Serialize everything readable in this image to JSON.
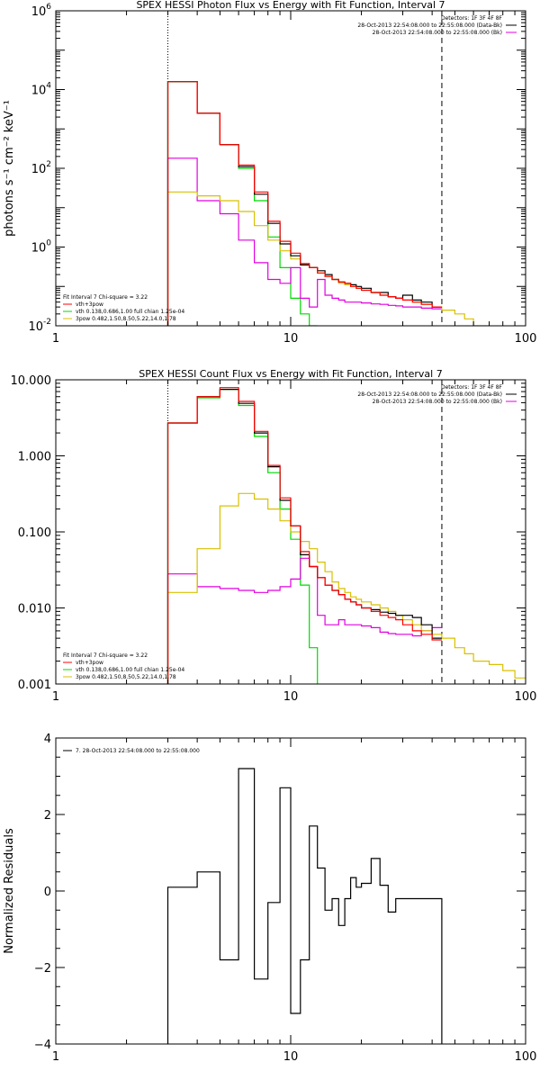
{
  "colors": {
    "black": "#000000",
    "red": "#ff0000",
    "green": "#00d800",
    "yellow": "#d8c000",
    "magenta": "#e000e0"
  },
  "chart_data": [
    {
      "type": "line",
      "title": "SPEX HESSI Photon Flux vs Energy with Fit Function, Interval 7",
      "xlabel": "",
      "ylabel": "photons s⁻¹ cm⁻² keV⁻¹",
      "xscale": "log",
      "yscale": "log",
      "xlim": [
        1,
        100
      ],
      "ylim": [
        0.01,
        1000000
      ],
      "xticks": [
        {
          "v": 1,
          "label": "1"
        },
        {
          "v": 10,
          "label": "10"
        },
        {
          "v": 100,
          "label": "100"
        }
      ],
      "yticks": [
        {
          "v": 0.01,
          "base": "10",
          "exp": "-2"
        },
        {
          "v": 1,
          "base": "10",
          "exp": "0"
        },
        {
          "v": 100,
          "base": "10",
          "exp": "2"
        },
        {
          "v": 10000,
          "base": "10",
          "exp": "4"
        },
        {
          "v": 1000000,
          "base": "10",
          "exp": "6"
        }
      ],
      "vlines": [
        {
          "x": 3.0,
          "style": "dotted"
        },
        {
          "x": 44.0,
          "style": "dashed"
        }
      ],
      "legend_right": [
        {
          "text": "Detectors: 1F 3F 4F 8F",
          "line": false,
          "color": "#000000"
        },
        {
          "text": "28-Oct-2013 22:54:08.000 to 22:55:08.000 (Data-Bk)",
          "line": true,
          "color": "#000000"
        },
        {
          "text": "28-Oct-2013 22:54:08.000 to 22:55:08.000 (Bk)",
          "line": true,
          "color": "#e000e0"
        }
      ],
      "legend_left": [
        {
          "text": "Fit Interval 7   Chi-square = 3.22",
          "line": false,
          "color": "#000000"
        },
        {
          "text": "vth+3pow",
          "line": true,
          "color": "#ff0000"
        },
        {
          "text": "vth 0.138,0.686,1.00  full chian 1.25e-04",
          "line": true,
          "color": "#00d800"
        },
        {
          "text": "3pow 0.482,1.50,8.50,5.22,14.0,1.78",
          "line": true,
          "color": "#d8c000"
        }
      ],
      "series": [
        {
          "color": "#00d800",
          "edges": [
            3,
            4,
            5,
            6,
            7,
            8,
            9,
            10,
            11,
            12,
            13
          ],
          "values": [
            16000,
            2500,
            400,
            100,
            15,
            1.8,
            0.3,
            0.05,
            0.02,
            0.01,
            0.01
          ]
        },
        {
          "color": "#e000e0",
          "edges": [
            3,
            4,
            5,
            6,
            7,
            8,
            9,
            10,
            11,
            12,
            13,
            14,
            15,
            16,
            17,
            18,
            19,
            20,
            22,
            24,
            26,
            28,
            30,
            33,
            36,
            40,
            44
          ],
          "values": [
            180,
            15,
            7,
            1.5,
            0.4,
            0.15,
            0.12,
            0.3,
            0.05,
            0.03,
            0.15,
            0.06,
            0.05,
            0.045,
            0.04,
            0.04,
            0.04,
            0.038,
            0.036,
            0.035,
            0.033,
            0.032,
            0.03,
            0.03,
            0.028,
            0.027
          ]
        },
        {
          "color": "#d8c000",
          "edges": [
            3,
            4,
            5,
            6,
            7,
            8,
            9,
            10,
            11,
            12,
            13,
            14,
            15,
            16,
            17,
            18,
            19,
            20,
            22,
            24,
            26,
            28,
            30,
            33,
            36,
            40,
            44,
            50,
            55,
            60,
            70
          ],
          "values": [
            25,
            20,
            15,
            8,
            3.5,
            1.5,
            0.8,
            0.5,
            0.35,
            0.3,
            0.22,
            0.18,
            0.15,
            0.12,
            0.11,
            0.1,
            0.09,
            0.08,
            0.07,
            0.06,
            0.055,
            0.05,
            0.045,
            0.04,
            0.035,
            0.03,
            0.025,
            0.02,
            0.015,
            0.01
          ]
        },
        {
          "color": "#000000",
          "edges": [
            3,
            4,
            5,
            6,
            7,
            8,
            9,
            10,
            11,
            12,
            13,
            14,
            15,
            16,
            17,
            18,
            19,
            20,
            22,
            24,
            26,
            28,
            30,
            33,
            36,
            40,
            44
          ],
          "values": [
            16000,
            2500,
            400,
            110,
            22,
            4,
            1.2,
            0.6,
            0.35,
            0.3,
            0.25,
            0.2,
            0.15,
            0.13,
            0.12,
            0.11,
            0.1,
            0.09,
            0.07,
            0.07,
            0.055,
            0.05,
            0.06,
            0.045,
            0.04,
            0.03
          ]
        },
        {
          "color": "#ff0000",
          "edges": [
            3,
            4,
            5,
            6,
            7,
            8,
            9,
            10,
            11,
            12,
            13,
            14,
            15,
            16,
            17,
            18,
            19,
            20,
            22,
            24,
            26,
            28,
            30,
            33,
            36,
            40,
            44
          ],
          "values": [
            16000,
            2500,
            400,
            120,
            25,
            4.5,
            1.4,
            0.7,
            0.38,
            0.3,
            0.22,
            0.18,
            0.15,
            0.13,
            0.12,
            0.1,
            0.09,
            0.08,
            0.07,
            0.06,
            0.055,
            0.05,
            0.045,
            0.04,
            0.035,
            0.03
          ]
        }
      ]
    },
    {
      "type": "line",
      "title": "SPEX HESSI Count Flux vs Energy with Fit Function, Interval 7",
      "xlabel": "",
      "ylabel": "",
      "xscale": "log",
      "yscale": "log",
      "xlim": [
        1,
        100
      ],
      "ylim": [
        0.001,
        10
      ],
      "xticks": [
        {
          "v": 1,
          "label": "1"
        },
        {
          "v": 10,
          "label": "10"
        },
        {
          "v": 100,
          "label": "100"
        }
      ],
      "yticks": [
        {
          "v": 0.001,
          "label": "0.001"
        },
        {
          "v": 0.01,
          "label": "0.010"
        },
        {
          "v": 0.1,
          "label": "0.100"
        },
        {
          "v": 1,
          "label": "1.000"
        },
        {
          "v": 10,
          "label": "10.000"
        }
      ],
      "vlines": [
        {
          "x": 3.0,
          "style": "dotted"
        },
        {
          "x": 44.0,
          "style": "dashed"
        }
      ],
      "legend_right": [
        {
          "text": "Detectors: 1F 3F 4F 8F",
          "line": false,
          "color": "#000000"
        },
        {
          "text": "28-Oct-2013 22:54:08.000 to 22:55:08.000 (Data-Bk)",
          "line": true,
          "color": "#000000"
        },
        {
          "text": "28-Oct-2013 22:54:08.000 to 22:55:08.000 (Bk)",
          "line": true,
          "color": "#e000e0"
        }
      ],
      "legend_left": [
        {
          "text": "Fit Interval 7   Chi-square = 3.22",
          "line": false,
          "color": "#000000"
        },
        {
          "text": "vth+3pow",
          "line": true,
          "color": "#ff0000"
        },
        {
          "text": "vth 0.138,0.686,1.00  full chian 1.25e-04",
          "line": true,
          "color": "#00d800"
        },
        {
          "text": "3pow 0.482,1.50,8.50,5.22,14.0,1.78",
          "line": true,
          "color": "#d8c000"
        }
      ],
      "series": [
        {
          "color": "#00d800",
          "edges": [
            3,
            4,
            5,
            6,
            7,
            8,
            9,
            10,
            11,
            12,
            13
          ],
          "values": [
            2.7,
            5.8,
            7.5,
            4.6,
            1.8,
            0.6,
            0.2,
            0.08,
            0.02,
            0.003,
            0.001
          ]
        },
        {
          "color": "#e000e0",
          "edges": [
            3,
            4,
            5,
            6,
            7,
            8,
            9,
            10,
            11,
            12,
            13,
            14,
            15,
            16,
            17,
            18,
            19,
            20,
            22,
            24,
            26,
            28,
            30,
            33,
            36,
            40,
            44
          ],
          "values": [
            0.028,
            0.019,
            0.018,
            0.017,
            0.016,
            0.017,
            0.019,
            0.024,
            0.045,
            0.035,
            0.008,
            0.006,
            0.006,
            0.007,
            0.006,
            0.006,
            0.006,
            0.0058,
            0.0055,
            0.0048,
            0.0046,
            0.0045,
            0.0045,
            0.0043,
            0.005,
            0.0055
          ]
        },
        {
          "color": "#d8c000",
          "edges": [
            3,
            4,
            5,
            6,
            7,
            8,
            9,
            10,
            11,
            12,
            13,
            14,
            15,
            16,
            17,
            18,
            19,
            20,
            22,
            24,
            26,
            28,
            30,
            33,
            36,
            40,
            44,
            50,
            55,
            60,
            70,
            80,
            90,
            100
          ],
          "values": [
            0.016,
            0.06,
            0.22,
            0.32,
            0.27,
            0.2,
            0.14,
            0.1,
            0.075,
            0.06,
            0.04,
            0.03,
            0.022,
            0.018,
            0.016,
            0.014,
            0.013,
            0.012,
            0.011,
            0.01,
            0.009,
            0.008,
            0.007,
            0.006,
            0.005,
            0.0045,
            0.004,
            0.003,
            0.0025,
            0.002,
            0.0018,
            0.0015,
            0.0012
          ]
        },
        {
          "color": "#000000",
          "edges": [
            3,
            4,
            5,
            6,
            7,
            8,
            9,
            10,
            11,
            12,
            13,
            14,
            15,
            16,
            17,
            18,
            19,
            20,
            22,
            24,
            26,
            28,
            30,
            33,
            36,
            40,
            44
          ],
          "values": [
            2.7,
            6.0,
            7.5,
            4.9,
            2.0,
            0.72,
            0.26,
            0.12,
            0.05,
            0.035,
            0.025,
            0.02,
            0.017,
            0.015,
            0.013,
            0.012,
            0.011,
            0.01,
            0.0095,
            0.0088,
            0.0085,
            0.008,
            0.008,
            0.0075,
            0.006,
            0.004
          ]
        },
        {
          "color": "#ff0000",
          "edges": [
            3,
            4,
            5,
            6,
            7,
            8,
            9,
            10,
            11,
            12,
            13,
            14,
            15,
            16,
            17,
            18,
            19,
            20,
            22,
            24,
            26,
            28,
            30,
            33,
            36,
            40,
            44
          ],
          "values": [
            2.7,
            6.0,
            7.9,
            5.2,
            2.1,
            0.75,
            0.28,
            0.12,
            0.055,
            0.035,
            0.025,
            0.02,
            0.017,
            0.015,
            0.013,
            0.012,
            0.011,
            0.01,
            0.009,
            0.008,
            0.0075,
            0.007,
            0.006,
            0.005,
            0.0045,
            0.0038
          ]
        }
      ]
    },
    {
      "type": "line",
      "title": "",
      "xlabel": "",
      "ylabel": "Normalized Residuals",
      "xscale": "log",
      "yscale": "linear",
      "xlim": [
        1,
        100
      ],
      "ylim": [
        -4,
        4
      ],
      "xticks": [
        {
          "v": 1,
          "label": "1"
        },
        {
          "v": 10,
          "label": "10"
        },
        {
          "v": 100,
          "label": "100"
        }
      ],
      "yticks": [
        {
          "v": -4,
          "label": "−4"
        },
        {
          "v": -2,
          "label": "−2"
        },
        {
          "v": 0,
          "label": "0"
        },
        {
          "v": 2,
          "label": "2"
        },
        {
          "v": 4,
          "label": "4"
        }
      ],
      "vlines": [],
      "legend_left": [
        {
          "text": "7. 28-Oct-2013 22:54:08.000 to 22:55:08.000",
          "line": true,
          "color": "#000000"
        }
      ],
      "legend_right": [],
      "series": [
        {
          "color": "#000000",
          "edges": [
            3,
            4,
            5,
            6,
            7,
            8,
            9,
            10,
            11,
            12,
            13,
            14,
            15,
            16,
            17,
            18,
            19,
            20,
            22,
            24,
            26,
            28,
            30,
            33,
            36,
            40,
            44
          ],
          "values": [
            0.1,
            0.5,
            -1.8,
            3.2,
            -2.3,
            -0.3,
            2.7,
            -3.2,
            -1.8,
            1.7,
            0.6,
            -0.5,
            -0.2,
            -0.9,
            -0.2,
            0.35,
            0.1,
            0.2,
            0.85,
            0.15,
            -0.55,
            -0.2,
            -0.2,
            -0.2,
            -0.2,
            -0.2
          ]
        }
      ],
      "step_drop_to_bottom": true
    }
  ]
}
